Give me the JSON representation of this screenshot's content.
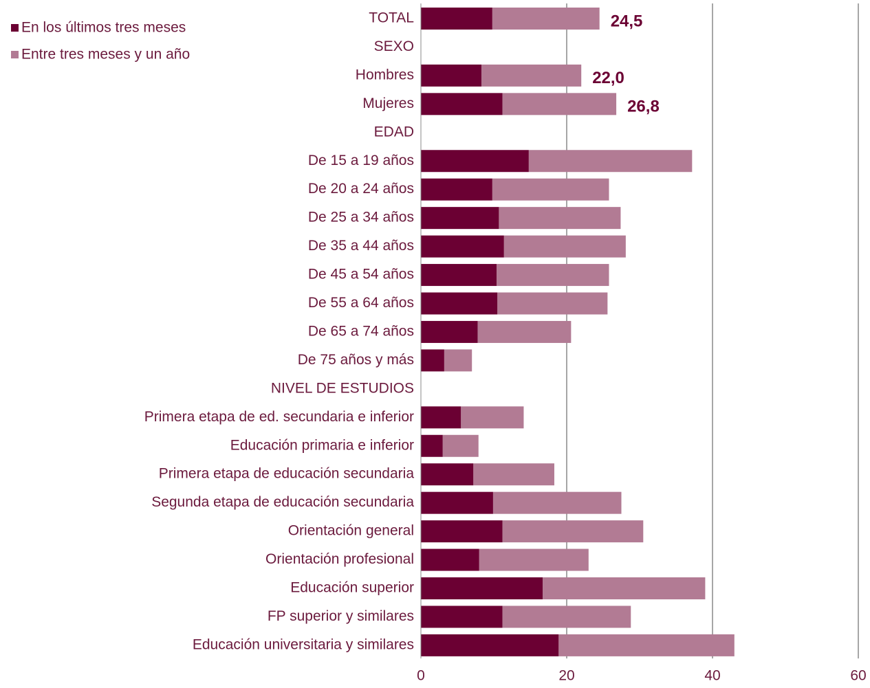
{
  "chart_data": {
    "type": "stacked-barh",
    "categories": [
      "TOTAL",
      "SEXO",
      "Hombres",
      "Mujeres",
      "EDAD",
      "De 15 a 19 años",
      "De 20 a 24 años",
      "De 25 a 34 años",
      "De 35 a 44 años",
      "De 45 a 54 años",
      "De 55 a 64 años",
      "De 65 a 74 años",
      "De 75 años y más",
      "NIVEL DE ESTUDIOS",
      "Primera etapa de ed. secundaria e inferior",
      "Educación primaria e inferior",
      "Primera etapa de educación secundaria",
      "Segunda etapa de educación secundaria",
      "Orientación general",
      "Orientación profesional",
      "Educación superior",
      "FP superior y similares",
      "Educación universitaria y similares"
    ],
    "series": [
      {
        "name": "En los últimos tres meses",
        "color": "#6b0033",
        "values": [
          9.8,
          null,
          8.3,
          11.2,
          null,
          14.8,
          9.8,
          10.7,
          11.4,
          10.4,
          10.5,
          7.8,
          3.2,
          null,
          5.5,
          3.0,
          7.2,
          9.9,
          11.2,
          8.0,
          16.7,
          11.2,
          18.9
        ]
      },
      {
        "name": "Entre tres meses y un año",
        "color": "#b27b94",
        "values": [
          14.7,
          null,
          13.7,
          15.6,
          null,
          22.4,
          16.0,
          16.7,
          16.7,
          15.4,
          15.1,
          12.8,
          3.8,
          null,
          8.6,
          4.9,
          11.1,
          17.6,
          19.3,
          15.0,
          22.3,
          17.6,
          24.1
        ]
      }
    ],
    "total_labels": [
      "24,5",
      null,
      "22,0",
      "26,8",
      null,
      null,
      null,
      null,
      null,
      null,
      null,
      null,
      null,
      null,
      null,
      null,
      null,
      null,
      null,
      null,
      null,
      null,
      null
    ],
    "xlim": [
      0,
      60
    ],
    "xticks": [
      0,
      20,
      40,
      60
    ],
    "grid": true,
    "legend": "top-left"
  }
}
